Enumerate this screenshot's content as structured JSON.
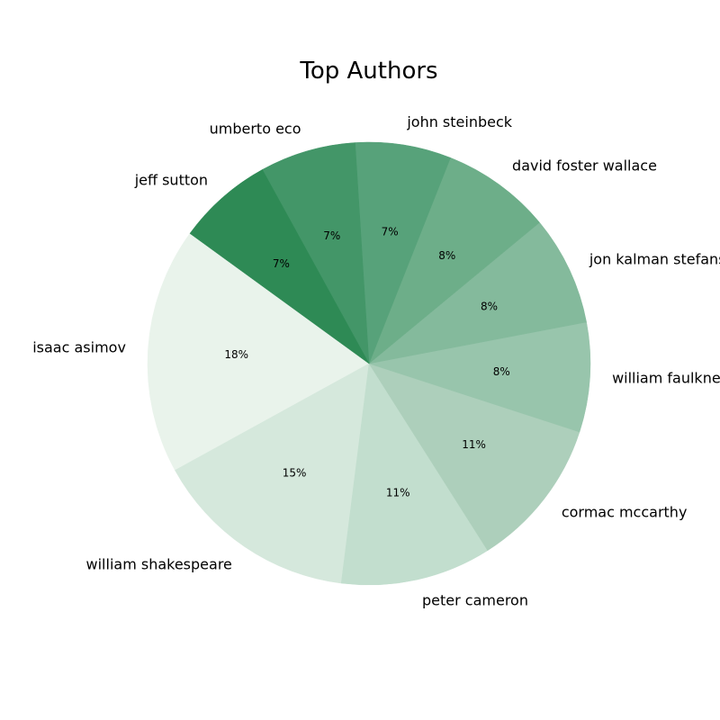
{
  "chart_data": {
    "type": "pie",
    "title": "Top Authors",
    "labels": [
      "isaac asimov",
      "william shakespeare",
      "peter cameron",
      "cormac mccarthy",
      "william faulkner",
      "jon kalman stefansson",
      "david foster wallace",
      "john steinbeck",
      "umberto eco",
      "jeff sutton"
    ],
    "values": [
      18,
      15,
      11,
      11,
      8,
      8,
      8,
      7,
      7,
      7
    ],
    "percent_labels": [
      "18%",
      "15%",
      "11%",
      "11%",
      "8%",
      "8%",
      "8%",
      "7%",
      "7%",
      "7%"
    ],
    "colors": [
      "#e9f3eb",
      "#d5e8dc",
      "#c2dece",
      "#adcfbb",
      "#98c5ac",
      "#84ba9c",
      "#6dae89",
      "#57a27a",
      "#439668",
      "#2e8a55"
    ],
    "start_angle_deg": 144,
    "direction": "counterclockwise"
  }
}
